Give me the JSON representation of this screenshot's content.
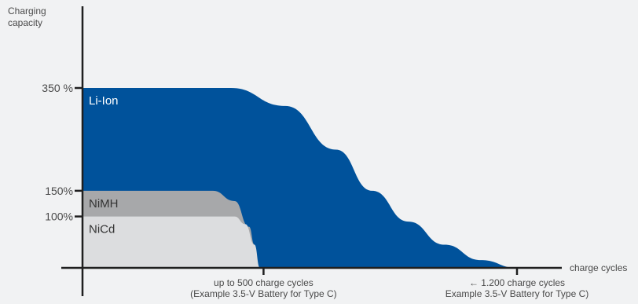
{
  "chart_data": {
    "type": "area",
    "ylabel": [
      "Charging",
      "capacity"
    ],
    "xlabel": "charge cycles",
    "ylim": [
      0,
      350
    ],
    "xlim": [
      0,
      1200
    ],
    "y_ticks": [
      {
        "value": 350,
        "label": "350 %"
      },
      {
        "value": 150,
        "label": "150%"
      },
      {
        "value": 100,
        "label": "100%"
      }
    ],
    "x_ticks": [
      {
        "value": 500,
        "lines": [
          "up to 500 charge cycles",
          "(Example 3.5-V Battery for Type C)"
        ]
      },
      {
        "value": 1200,
        "lines": [
          "← 1.200 charge cycles",
          "Example 3.5-V Battery for Type C)"
        ]
      }
    ],
    "series": [
      {
        "name": "Li-Ion",
        "color": "#00529b",
        "x": [
          0,
          410,
          560,
          700,
          800,
          900,
          1000,
          1100,
          1200
        ],
        "y": [
          350,
          350,
          315,
          230,
          150,
          90,
          45,
          15,
          0
        ]
      },
      {
        "name": "NiMH",
        "color": "#a7a8aa",
        "x": [
          0,
          360,
          420,
          460,
          475
        ],
        "y": [
          150,
          150,
          130,
          80,
          45
        ]
      },
      {
        "name": "NiCd",
        "color": "#dcdddf",
        "x": [
          0,
          420,
          450,
          475,
          490
        ],
        "y": [
          100,
          100,
          85,
          45,
          0
        ]
      }
    ],
    "grid": false,
    "legend": "inline labels"
  }
}
